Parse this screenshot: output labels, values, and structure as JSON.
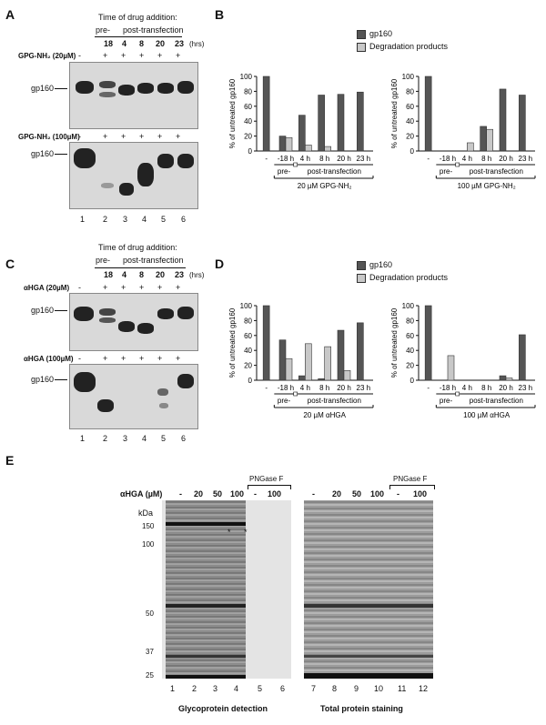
{
  "panels": {
    "A": "A",
    "B": "B",
    "C": "C",
    "D": "D",
    "E": "E"
  },
  "time_header": "Time of drug addition:",
  "pre": "pre-",
  "post": "post-transfection",
  "hours": [
    "18",
    "4",
    "8",
    "20",
    "23"
  ],
  "hrs": "(hrs)",
  "gp160": "gp160",
  "lanes6": [
    "1",
    "2",
    "3",
    "4",
    "5",
    "6"
  ],
  "treat_marks": [
    "-",
    "+",
    "+",
    "+",
    "+",
    "+"
  ],
  "A": {
    "row1": "GPG-NH₂ (20µM)",
    "row2": "GPG-NH₂ (100µM)"
  },
  "C": {
    "row1": "αHGA (20µM)",
    "row2": "αHGA (100µM)"
  },
  "legend": {
    "s1": "gp160",
    "s2": "Degradation products",
    "c1": "#555555",
    "c2": "#c8c8c8"
  },
  "ylabel": "% of untreated gp160",
  "yticks": [
    "0",
    "20",
    "40",
    "60",
    "80",
    "100"
  ],
  "categories": [
    "-",
    "-18 h",
    "4 h",
    "8 h",
    "20 h",
    "23 h"
  ],
  "chart_data": [
    {
      "type": "bar",
      "caption": "20 µM GPG-NH₂",
      "ylim": [
        0,
        100
      ],
      "series": [
        {
          "name": "gp160",
          "values": [
            100,
            20,
            48,
            75,
            76,
            79
          ]
        },
        {
          "name": "Degradation products",
          "values": [
            0,
            18,
            8,
            6,
            0,
            0
          ]
        }
      ]
    },
    {
      "type": "bar",
      "caption": "100 µM GPG-NH₂",
      "ylim": [
        0,
        100
      ],
      "series": [
        {
          "name": "gp160",
          "values": [
            100,
            0,
            0,
            33,
            83,
            75
          ]
        },
        {
          "name": "Degradation products",
          "values": [
            0,
            0,
            11,
            29,
            0,
            0
          ]
        }
      ]
    },
    {
      "type": "bar",
      "caption": "20 µM αHGA",
      "ylim": [
        0,
        100
      ],
      "series": [
        {
          "name": "gp160",
          "values": [
            100,
            54,
            6,
            2,
            67,
            77
          ]
        },
        {
          "name": "Degradation products",
          "values": [
            0,
            29,
            49,
            45,
            13,
            0
          ]
        }
      ]
    },
    {
      "type": "bar",
      "caption": "100 µM αHGA",
      "ylim": [
        0,
        100
      ],
      "series": [
        {
          "name": "gp160",
          "values": [
            100,
            0,
            0,
            0,
            6,
            61
          ]
        },
        {
          "name": "Degradation products",
          "values": [
            0,
            33,
            0,
            0,
            3,
            0
          ]
        }
      ]
    }
  ],
  "E": {
    "ahga": "αHGA (µM)",
    "conc": [
      "-",
      "20",
      "50",
      "100",
      "-",
      "100"
    ],
    "pngase": "PNGase F",
    "kda": "kDa",
    "markers": [
      "150",
      "100",
      "50",
      "37",
      "25"
    ],
    "lanes_left": [
      "1",
      "2",
      "3",
      "4",
      "5",
      "6"
    ],
    "lanes_right": [
      "7",
      "8",
      "9",
      "10",
      "11",
      "12"
    ],
    "cap_left": "Glycoprotein detection",
    "cap_right": "Total protein staining",
    "star": "*"
  }
}
